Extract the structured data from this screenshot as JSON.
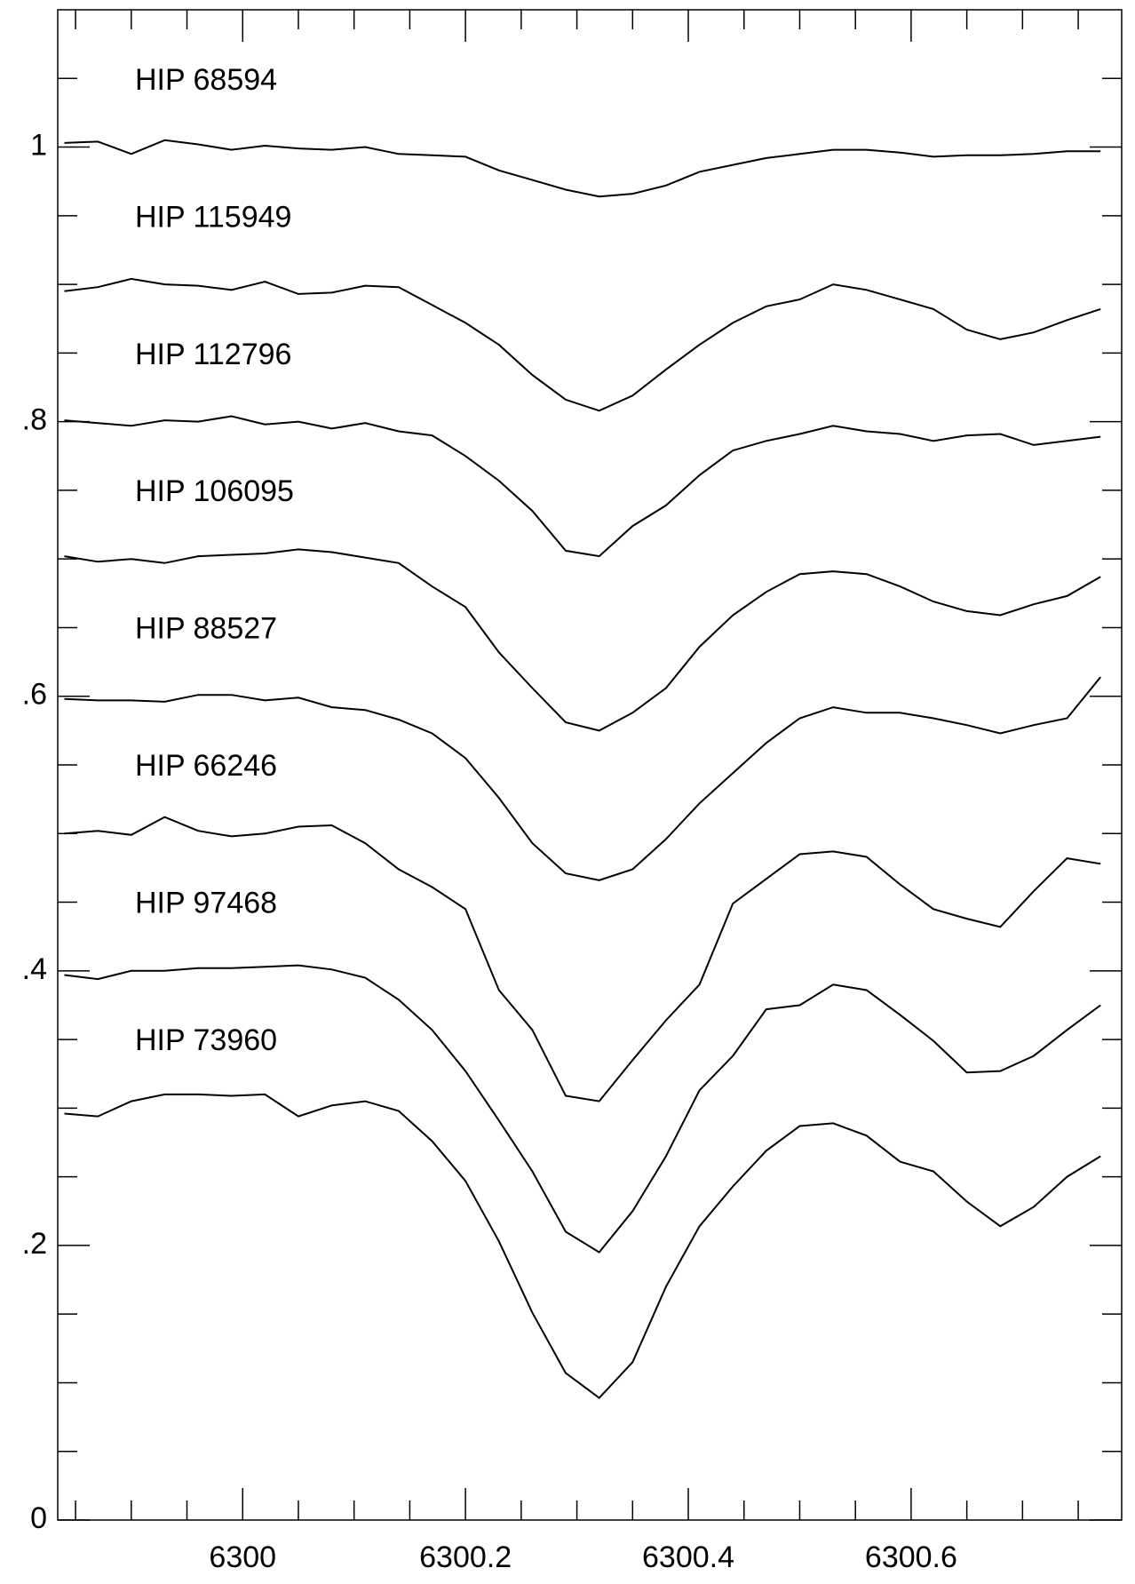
{
  "chart_data": {
    "type": "line",
    "x": [
      6299.84,
      6299.87,
      6299.9,
      6299.93,
      6299.96,
      6299.99,
      6300.02,
      6300.05,
      6300.08,
      6300.11,
      6300.14,
      6300.17,
      6300.2,
      6300.23,
      6300.26,
      6300.29,
      6300.32,
      6300.35,
      6300.38,
      6300.41,
      6300.44,
      6300.47,
      6300.5,
      6300.53,
      6300.56,
      6300.59,
      6300.62,
      6300.65,
      6300.68,
      6300.71,
      6300.74,
      6300.77
    ],
    "series": [
      {
        "name": "HIP 68594",
        "color": "#000000",
        "values": [
          1.003,
          1.004,
          0.995,
          1.005,
          1.002,
          0.998,
          1.001,
          0.999,
          0.998,
          1.0,
          0.995,
          0.994,
          0.993,
          0.983,
          0.976,
          0.969,
          0.964,
          0.966,
          0.972,
          0.982,
          0.987,
          0.992,
          0.995,
          0.998,
          0.998,
          0.996,
          0.993,
          0.994,
          0.994,
          0.995,
          0.997,
          0.997
        ]
      },
      {
        "name": "HIP 115949",
        "color": "#000000",
        "values": [
          0.895,
          0.898,
          0.904,
          0.9,
          0.899,
          0.896,
          0.902,
          0.893,
          0.894,
          0.899,
          0.898,
          0.885,
          0.872,
          0.856,
          0.834,
          0.816,
          0.808,
          0.819,
          0.838,
          0.856,
          0.872,
          0.884,
          0.889,
          0.9,
          0.896,
          0.889,
          0.882,
          0.867,
          0.86,
          0.865,
          0.874,
          0.882
        ]
      },
      {
        "name": "HIP 112796",
        "color": "#000000",
        "values": [
          0.801,
          0.799,
          0.797,
          0.801,
          0.8,
          0.804,
          0.798,
          0.8,
          0.795,
          0.799,
          0.793,
          0.79,
          0.775,
          0.757,
          0.735,
          0.706,
          0.702,
          0.724,
          0.739,
          0.761,
          0.779,
          0.786,
          0.791,
          0.797,
          0.793,
          0.791,
          0.786,
          0.79,
          0.791,
          0.783,
          0.786,
          0.789
        ]
      },
      {
        "name": "HIP 106095",
        "color": "#000000",
        "values": [
          0.702,
          0.698,
          0.7,
          0.697,
          0.702,
          0.703,
          0.704,
          0.707,
          0.705,
          0.701,
          0.697,
          0.68,
          0.665,
          0.632,
          0.606,
          0.581,
          0.575,
          0.588,
          0.606,
          0.636,
          0.659,
          0.676,
          0.689,
          0.691,
          0.689,
          0.68,
          0.669,
          0.662,
          0.659,
          0.667,
          0.673,
          0.687
        ]
      },
      {
        "name": "HIP 88527",
        "color": "#000000",
        "values": [
          0.598,
          0.597,
          0.597,
          0.596,
          0.601,
          0.601,
          0.597,
          0.599,
          0.592,
          0.59,
          0.583,
          0.573,
          0.555,
          0.526,
          0.493,
          0.471,
          0.466,
          0.474,
          0.496,
          0.522,
          0.544,
          0.566,
          0.584,
          0.592,
          0.588,
          0.588,
          0.584,
          0.579,
          0.573,
          0.579,
          0.584,
          0.614
        ]
      },
      {
        "name": "HIP 66246",
        "color": "#000000",
        "values": [
          0.5,
          0.502,
          0.499,
          0.512,
          0.502,
          0.498,
          0.5,
          0.505,
          0.506,
          0.493,
          0.474,
          0.461,
          0.445,
          0.386,
          0.357,
          0.309,
          0.305,
          0.335,
          0.364,
          0.39,
          0.449,
          0.467,
          0.485,
          0.487,
          0.483,
          0.463,
          0.445,
          0.438,
          0.432,
          0.458,
          0.482,
          0.478
        ]
      },
      {
        "name": "HIP 97468",
        "color": "#000000",
        "values": [
          0.397,
          0.394,
          0.4,
          0.4,
          0.402,
          0.402,
          0.403,
          0.404,
          0.401,
          0.395,
          0.379,
          0.357,
          0.327,
          0.291,
          0.254,
          0.21,
          0.195,
          0.225,
          0.265,
          0.313,
          0.338,
          0.372,
          0.375,
          0.39,
          0.386,
          0.368,
          0.349,
          0.326,
          0.327,
          0.338,
          0.357,
          0.375
        ]
      },
      {
        "name": "HIP 73960",
        "color": "#000000",
        "values": [
          0.296,
          0.294,
          0.305,
          0.31,
          0.31,
          0.309,
          0.31,
          0.294,
          0.302,
          0.305,
          0.298,
          0.276,
          0.247,
          0.203,
          0.151,
          0.107,
          0.089,
          0.115,
          0.17,
          0.214,
          0.243,
          0.269,
          0.287,
          0.289,
          0.28,
          0.261,
          0.254,
          0.232,
          0.214,
          0.228,
          0.25,
          0.265
        ]
      }
    ],
    "xlim": [
      6299.834,
      6300.789
    ],
    "ylim": [
      0,
      1.1
    ],
    "xticks": [
      6300,
      6300.2,
      6300.4,
      6300.6
    ],
    "yticks": [
      0,
      {
        "value": 0.2,
        "label": ".2"
      },
      {
        "value": 0.4,
        "label": ".4"
      },
      {
        "value": 0.6,
        "label": ".6"
      },
      {
        "value": 0.8,
        "label": ".8"
      },
      1
    ],
    "xminorticks": [
      6299.85,
      6299.9,
      6299.95,
      6300.05,
      6300.1,
      6300.15,
      6300.25,
      6300.3,
      6300.35,
      6300.45,
      6300.5,
      6300.55,
      6300.65,
      6300.7,
      6300.75
    ],
    "yminorticks": [
      0.05,
      0.1,
      0.15,
      0.25,
      0.3,
      0.35,
      0.45,
      0.5,
      0.55,
      0.65,
      0.7,
      0.75,
      0.85,
      0.9,
      0.95,
      1.05
    ]
  }
}
